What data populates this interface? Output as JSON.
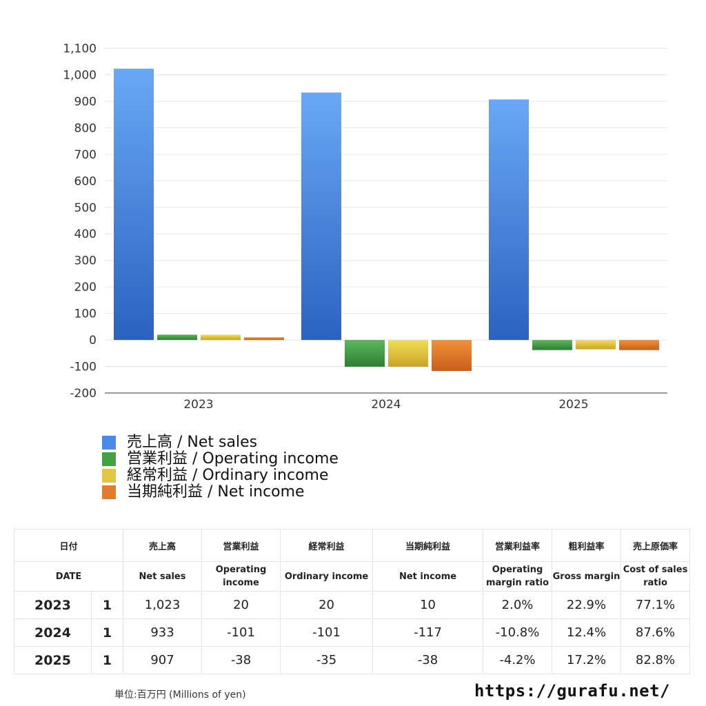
{
  "chart_data": {
    "type": "bar",
    "categories": [
      "2023",
      "2024",
      "2025"
    ],
    "series": [
      {
        "name": "売上高 / Net sales",
        "values": [
          1023,
          933,
          907
        ],
        "color_top": "#6aa8f5",
        "color_bottom": "#2b62c0"
      },
      {
        "name": "営業利益 / Operating income",
        "values": [
          20,
          -101,
          -38
        ],
        "color_top": "#5cb85c",
        "color_bottom": "#2e7d32"
      },
      {
        "name": "経常利益 / Ordinary income",
        "values": [
          20,
          -101,
          -35
        ],
        "color_top": "#f3df55",
        "color_bottom": "#c9a227"
      },
      {
        "name": "当期純利益 / Net income",
        "values": [
          10,
          -117,
          -38
        ],
        "color_top": "#f0913a",
        "color_bottom": "#c85f1c"
      }
    ],
    "yticks": [
      1100,
      1000,
      900,
      800,
      700,
      600,
      500,
      400,
      300,
      200,
      100,
      0,
      -100,
      -200
    ],
    "ytick_labels": [
      "1,100",
      "1,000",
      "900",
      "800",
      "700",
      "600",
      "500",
      "400",
      "300",
      "200",
      "100",
      "0",
      "-100",
      "-200"
    ],
    "ylim": [
      -200,
      1100
    ],
    "grid": true,
    "legend_position": "bottom-left"
  },
  "legend": {
    "items": [
      {
        "label": "売上高 / Net sales",
        "color": "#4a8ae6"
      },
      {
        "label": "営業利益 / Operating income",
        "color": "#44a244"
      },
      {
        "label": "経常利益 / Ordinary income",
        "color": "#e2c63f"
      },
      {
        "label": "当期純利益 / Net income",
        "color": "#e07a2c"
      }
    ]
  },
  "table": {
    "header_ja": [
      "日付",
      "売上高",
      "営業利益",
      "経常利益",
      "当期純利益",
      "営業利益率",
      "粗利益率",
      "売上原価率"
    ],
    "header_en": [
      "DATE",
      "Net sales",
      "Operating income",
      "Ordinary income",
      "Net income",
      "Operating margin ratio",
      "Gross margin",
      "Cost of sales ratio"
    ],
    "rows": [
      {
        "year": "2023",
        "q": "1",
        "net_sales": "1,023",
        "operating": "20",
        "ordinary": "20",
        "net_income": "10",
        "op_margin": "2.0%",
        "gross": "22.9%",
        "cost": "77.1%"
      },
      {
        "year": "2024",
        "q": "1",
        "net_sales": "933",
        "operating": "-101",
        "ordinary": "-101",
        "net_income": "-117",
        "op_margin": "-10.8%",
        "gross": "12.4%",
        "cost": "87.6%"
      },
      {
        "year": "2025",
        "q": "1",
        "net_sales": "907",
        "operating": "-38",
        "ordinary": "-35",
        "net_income": "-38",
        "op_margin": "-4.2%",
        "gross": "17.2%",
        "cost": "82.8%"
      }
    ]
  },
  "footer": {
    "unit": "単位:百万円 (Millions of yen)",
    "site": "https://gurafu.net/"
  }
}
